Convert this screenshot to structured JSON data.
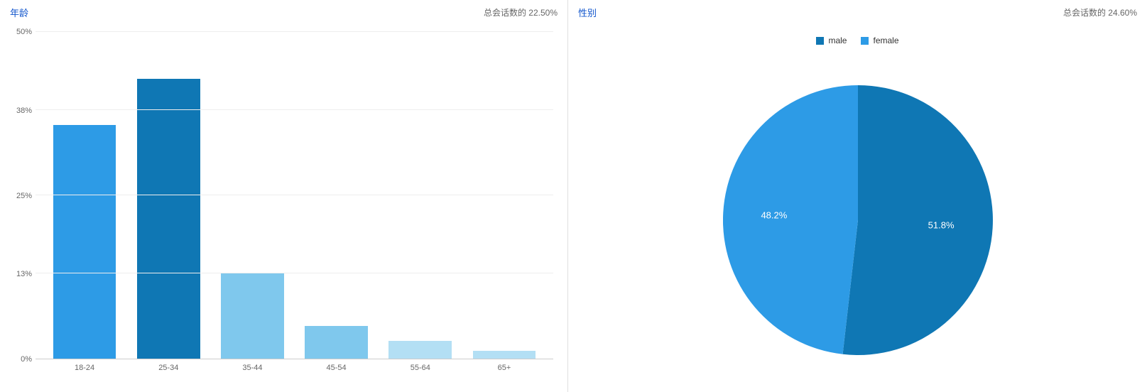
{
  "age_panel": {
    "title": "年龄",
    "subtitle": "总会话数的 22.50%",
    "chart": {
      "type": "bar",
      "y_axis": {
        "unit": "%",
        "ticks": [
          0,
          13,
          25,
          38,
          50
        ],
        "max": 50
      },
      "categories": [
        "18-24",
        "25-34",
        "35-44",
        "45-54",
        "55-64",
        "65+"
      ],
      "values": [
        35.8,
        42.8,
        13.2,
        5.0,
        2.7,
        1.2
      ],
      "bar_colors": [
        "#2d9be6",
        "#0f77b4",
        "#7fc8ed",
        "#7fc8ed",
        "#b3dff4",
        "#b3dff4"
      ],
      "gridline_color": "#eeeeee",
      "axis_color": "#cccccc",
      "label_color": "#666666",
      "label_fontsize": 11
    }
  },
  "gender_panel": {
    "title": "性别",
    "subtitle": "总会话数的 24.60%",
    "chart": {
      "type": "pie",
      "slices": [
        {
          "label": "male",
          "value": 51.8,
          "display": "51.8%",
          "color": "#0f77b4"
        },
        {
          "label": "female",
          "value": 48.2,
          "display": "48.2%",
          "color": "#2d9be6"
        }
      ],
      "diameter": 380,
      "label_color": "#ffffff",
      "label_fontsize": 13,
      "legend_fontsize": 12
    }
  }
}
